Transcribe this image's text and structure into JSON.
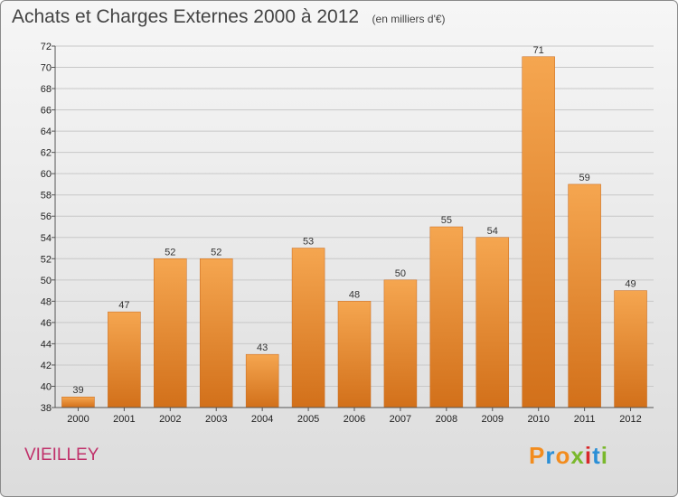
{
  "title": "Achats et Charges Externes 2000 à 2012",
  "subtitle": "(en milliers d'€)",
  "place": "VIEILLEY",
  "logo": {
    "letters": [
      "P",
      "r",
      "o",
      "x",
      "i",
      "t",
      "i"
    ],
    "colors": [
      "#f28c1e",
      "#2b8fd6",
      "#f28c1e",
      "#7ab82c",
      "#d8282a",
      "#2b8fd6",
      "#7ab82c"
    ]
  },
  "chart_data": {
    "type": "bar",
    "categories": [
      "2000",
      "2001",
      "2002",
      "2003",
      "2004",
      "2005",
      "2006",
      "2007",
      "2008",
      "2009",
      "2010",
      "2011",
      "2012"
    ],
    "values": [
      39,
      47,
      52,
      52,
      43,
      53,
      48,
      50,
      55,
      54,
      71,
      59,
      49
    ],
    "ylim": [
      38,
      72
    ],
    "yticks": [
      38,
      40,
      42,
      44,
      46,
      48,
      50,
      52,
      54,
      56,
      58,
      60,
      62,
      64,
      66,
      68,
      70,
      72
    ],
    "grid": true,
    "bar_color": "#e98a2e",
    "data_labels": true
  }
}
